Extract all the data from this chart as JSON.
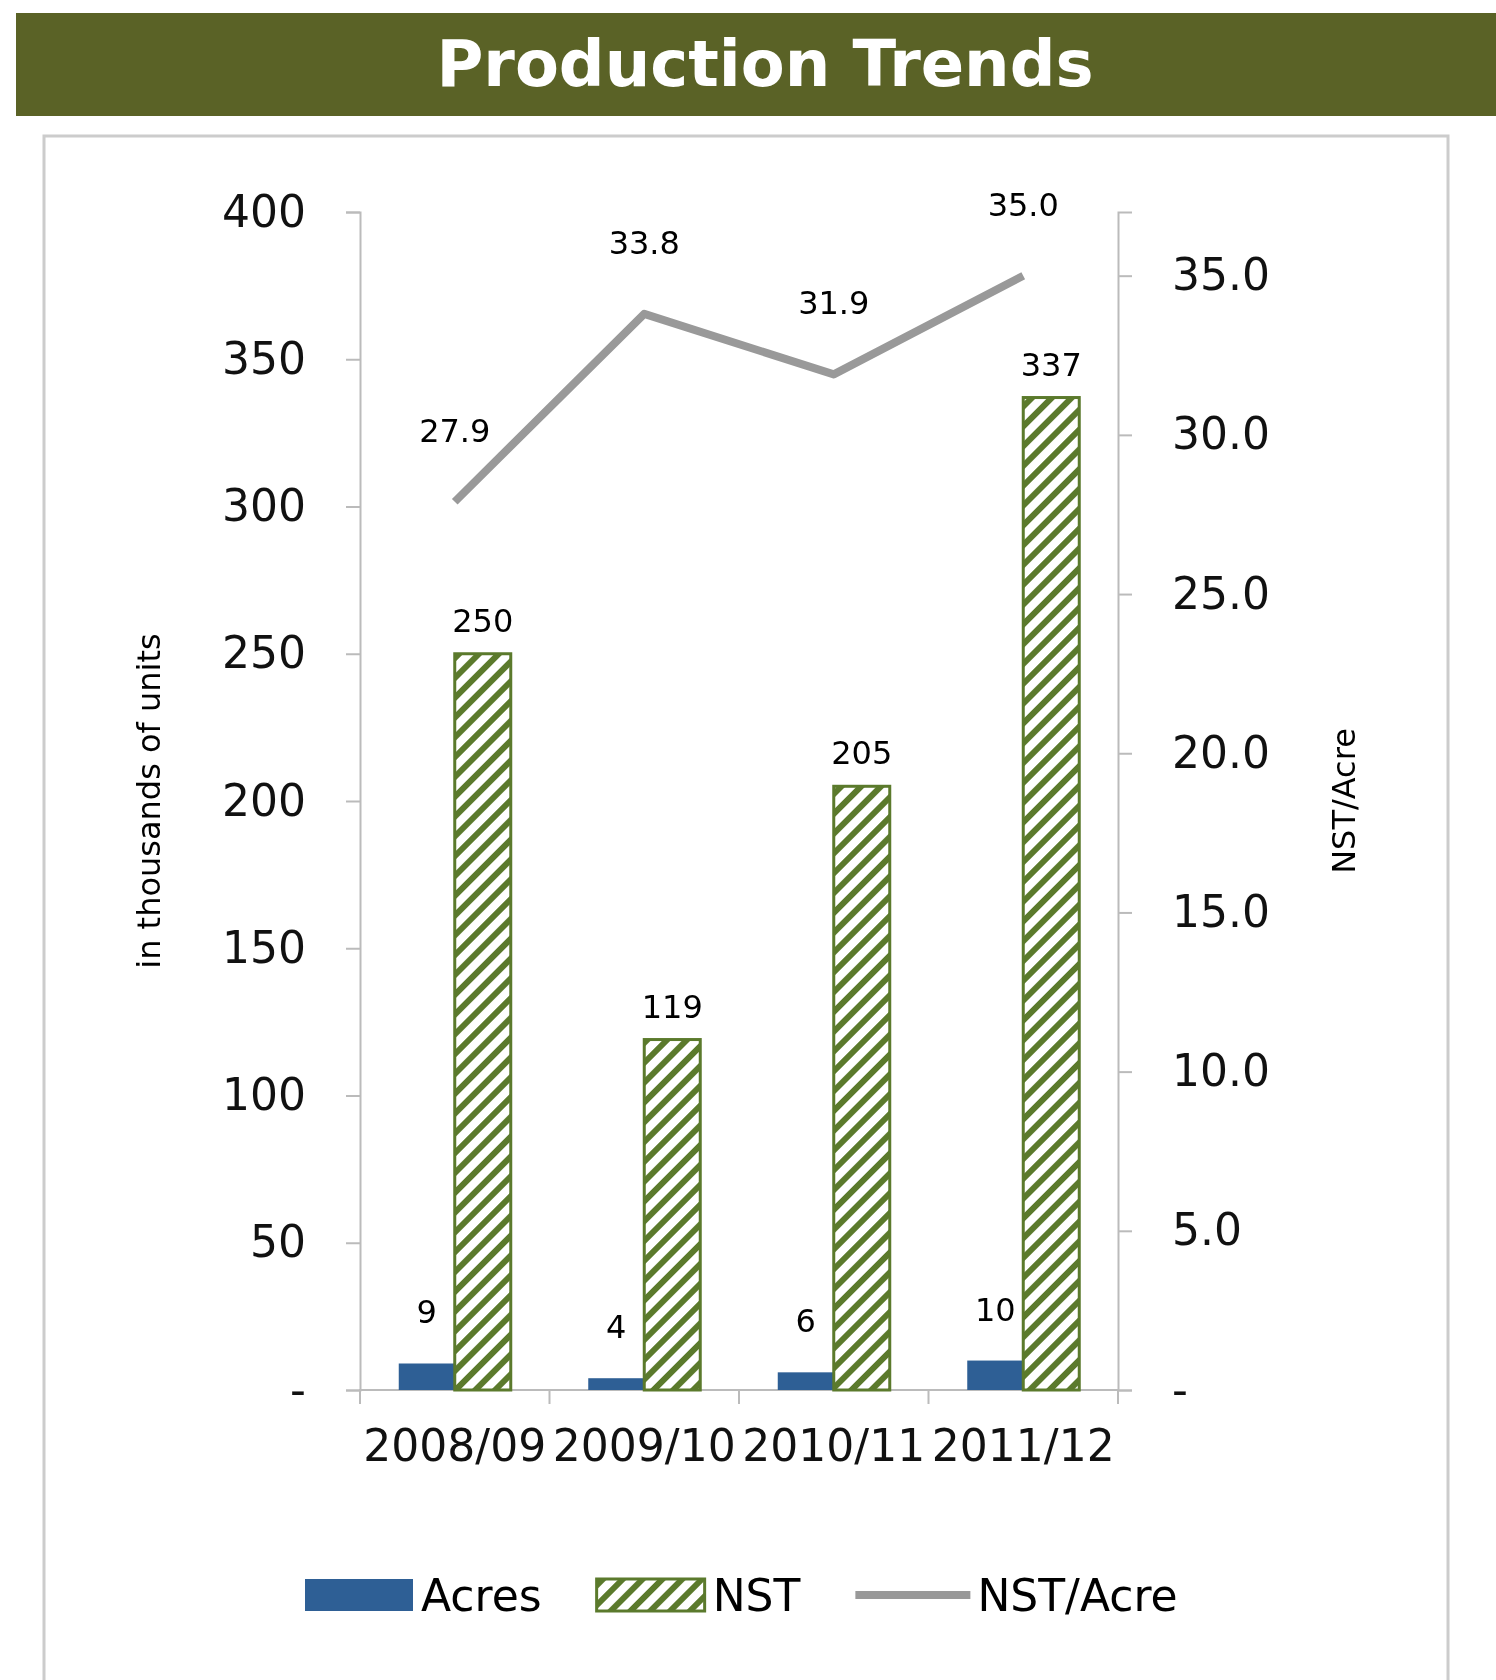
{
  "chart_data": {
    "type": "bar",
    "title": "Production Trends",
    "ylabel": "in thousands of units",
    "y2label": "NST/Acre",
    "categories": [
      "2008/09",
      "2009/10",
      "2010/11",
      "2011/12"
    ],
    "series": [
      {
        "name": "Acres",
        "color": "#2e5f95",
        "values": [
          9,
          4,
          6,
          10
        ]
      },
      {
        "name": "NST",
        "color": "#5b7a2c",
        "values": [
          250,
          119,
          205,
          337
        ]
      },
      {
        "name": "NST/Acre",
        "type": "line",
        "axis": "y2",
        "color": "#999999",
        "values": [
          27.9,
          33.8,
          31.9,
          35.0
        ],
        "value_labels": [
          "27.9",
          "33.8",
          "31.9",
          "35.0"
        ]
      }
    ],
    "ylim": [
      0,
      400
    ],
    "yticks": [
      {
        "value": 0,
        "label": "-"
      },
      50,
      100,
      150,
      200,
      250,
      300,
      350,
      400
    ],
    "y2lim": [
      0,
      37
    ],
    "y2ticks": [
      {
        "value": 0,
        "label": "-"
      },
      {
        "value": 5,
        "label": "5.0"
      },
      {
        "value": 10,
        "label": "10.0"
      },
      {
        "value": 15,
        "label": "15.0"
      },
      {
        "value": 20,
        "label": "20.0"
      },
      {
        "value": 25,
        "label": "25.0"
      },
      {
        "value": 30,
        "label": "30.0"
      },
      {
        "value": 35,
        "label": "35.0"
      }
    ],
    "data_labels": true,
    "legend": "bottom",
    "grid": false,
    "marker": "none",
    "line_style": "solid"
  }
}
